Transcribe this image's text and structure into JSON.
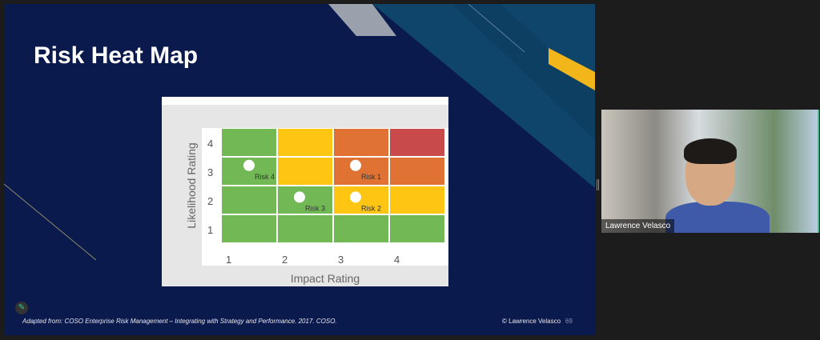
{
  "slide": {
    "title": "Risk Heat Map",
    "footer": "Adapted from:  COSO Enterprise Risk Management – Integrating with Strategy and Performance.  2017. COSO.",
    "copyright": "© Lawrence Velasco",
    "page_number": "69"
  },
  "video": {
    "participant_name": "Lawrence Velasco"
  },
  "colors": {
    "green": "#72b955",
    "yellow": "#fec513",
    "orange": "#e07333",
    "red": "#c84a4a",
    "slide_bg": "#0b1a4d"
  },
  "chart_data": {
    "type": "heatmap",
    "xlabel": "Impact Rating",
    "ylabel": "Likelihood Rating",
    "x_ticks": [
      "1",
      "2",
      "3",
      "4"
    ],
    "y_ticks": [
      "1",
      "2",
      "3",
      "4"
    ],
    "grid": [
      [
        "green",
        "green",
        "green",
        "green"
      ],
      [
        "green",
        "green",
        "yellow",
        "yellow"
      ],
      [
        "green",
        "yellow",
        "orange",
        "orange"
      ],
      [
        "green",
        "yellow",
        "orange",
        "red"
      ]
    ],
    "risks": [
      {
        "label": "Risk 1",
        "impact": 3.4,
        "likelihood": 3.7
      },
      {
        "label": "Risk 2",
        "impact": 3.4,
        "likelihood": 2.6
      },
      {
        "label": "Risk 3",
        "impact": 2.4,
        "likelihood": 2.6
      },
      {
        "label": "Risk 4",
        "impact": 1.5,
        "likelihood": 3.7
      }
    ]
  }
}
